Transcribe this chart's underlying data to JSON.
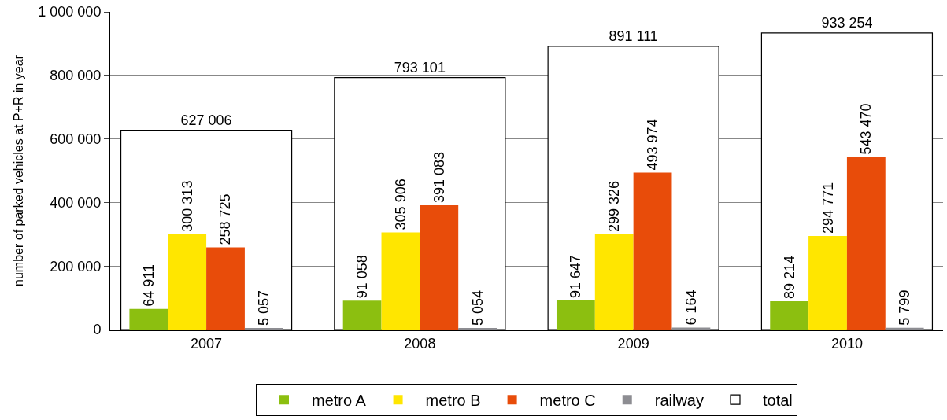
{
  "chart_data": {
    "type": "bar",
    "ylabel": "number of parked vehicles at P+R in year",
    "categories": [
      "2007",
      "2008",
      "2009",
      "2010"
    ],
    "series": [
      {
        "name": "total",
        "color": "#ffffff",
        "values": [
          627006,
          793101,
          891111,
          933254
        ]
      },
      {
        "name": "metro A",
        "color": "#8cbf10",
        "values": [
          64911,
          91058,
          91647,
          89214
        ]
      },
      {
        "name": "metro B",
        "color": "#ffe600",
        "values": [
          300313,
          305906,
          299326,
          294771
        ]
      },
      {
        "name": "metro C",
        "color": "#e84c0a",
        "values": [
          258725,
          391083,
          493974,
          543470
        ]
      },
      {
        "name": "railway",
        "color": "#8d8d92",
        "values": [
          5057,
          5054,
          6164,
          5799
        ]
      }
    ],
    "ylim": [
      0,
      1000000
    ],
    "yticks": [
      0,
      {
        "value": 200000,
        "label": "200 000"
      },
      {
        "value": 400000,
        "label": "400 000"
      },
      {
        "value": 600000,
        "label": "600 000"
      },
      {
        "value": 800000,
        "label": "800 000"
      },
      {
        "value": 1000000,
        "label": "1 000 000"
      }
    ],
    "grid": "y",
    "legend": "bottom",
    "data_labels": true
  }
}
